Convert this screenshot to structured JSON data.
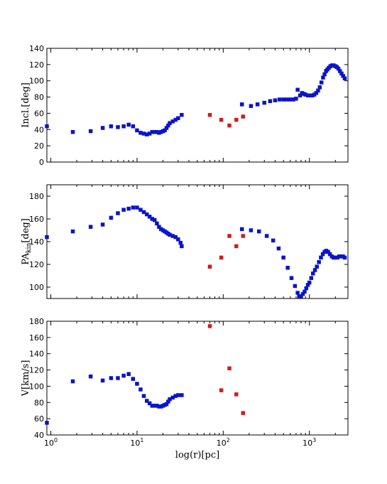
{
  "chart_data": [
    {
      "type": "scatter",
      "xscale": "log",
      "xlim": [
        0.9,
        2800
      ],
      "ylim": [
        0,
        140
      ],
      "yticks": [
        0,
        20,
        40,
        60,
        80,
        100,
        120,
        140
      ],
      "ylabel": "Incl.[deg]",
      "grid": false,
      "series": [
        {
          "color": "#0a14c8",
          "points": [
            [
              0.9,
              44
            ],
            [
              1.8,
              37
            ],
            [
              2.9,
              38
            ],
            [
              4,
              42
            ],
            [
              5,
              44
            ],
            [
              6,
              43
            ],
            [
              7,
              44
            ],
            [
              8,
              46
            ],
            [
              9,
              44
            ],
            [
              10,
              39
            ],
            [
              11,
              36
            ],
            [
              12,
              35
            ],
            [
              13,
              34
            ],
            [
              14,
              35
            ],
            [
              15,
              37
            ],
            [
              16,
              37
            ],
            [
              17,
              37
            ],
            [
              18,
              36
            ],
            [
              19,
              37
            ],
            [
              20,
              38
            ],
            [
              21,
              39
            ],
            [
              22,
              42
            ],
            [
              23,
              45
            ],
            [
              24,
              48
            ],
            [
              26,
              50
            ],
            [
              28,
              52
            ],
            [
              30,
              54
            ],
            [
              33,
              58
            ],
            [
              165,
              71
            ],
            [
              210,
              69
            ],
            [
              250,
              71
            ],
            [
              300,
              73
            ],
            [
              350,
              75
            ],
            [
              400,
              76
            ],
            [
              450,
              77
            ],
            [
              500,
              77
            ],
            [
              550,
              77
            ],
            [
              600,
              77
            ],
            [
              650,
              77
            ],
            [
              700,
              78
            ],
            [
              730,
              89
            ],
            [
              780,
              82
            ],
            [
              820,
              85
            ],
            [
              860,
              84
            ],
            [
              900,
              83
            ],
            [
              960,
              82
            ],
            [
              1020,
              82
            ],
            [
              1080,
              82
            ],
            [
              1140,
              83
            ],
            [
              1200,
              85
            ],
            [
              1260,
              88
            ],
            [
              1320,
              92
            ],
            [
              1380,
              98
            ],
            [
              1440,
              104
            ],
            [
              1500,
              108
            ],
            [
              1560,
              112
            ],
            [
              1620,
              114
            ],
            [
              1680,
              116
            ],
            [
              1750,
              118
            ],
            [
              1830,
              119
            ],
            [
              1910,
              119
            ],
            [
              2000,
              118
            ],
            [
              2080,
              117
            ],
            [
              2170,
              115
            ],
            [
              2260,
              112
            ],
            [
              2360,
              109
            ],
            [
              2460,
              106
            ],
            [
              2570,
              103
            ]
          ]
        },
        {
          "color": "#d01c1c",
          "points": [
            [
              70,
              58
            ],
            [
              95,
              52
            ],
            [
              118,
              45
            ],
            [
              142,
              52
            ],
            [
              170,
              56
            ]
          ]
        }
      ]
    },
    {
      "type": "scatter",
      "xscale": "log",
      "xlim": [
        0.9,
        2800
      ],
      "ylim": [
        90,
        190
      ],
      "yticks": [
        100,
        120,
        140,
        160,
        180
      ],
      "ylabel": "PA_kin[deg]",
      "grid": false,
      "series": [
        {
          "color": "#0a14c8",
          "points": [
            [
              0.9,
              144
            ],
            [
              1.8,
              149
            ],
            [
              2.9,
              153
            ],
            [
              4,
              155
            ],
            [
              5,
              161
            ],
            [
              6,
              165
            ],
            [
              7,
              168
            ],
            [
              8,
              169
            ],
            [
              9,
              170
            ],
            [
              10,
              170
            ],
            [
              11,
              168
            ],
            [
              12,
              166
            ],
            [
              13,
              164
            ],
            [
              14,
              162
            ],
            [
              15,
              160
            ],
            [
              16,
              159
            ],
            [
              17,
              156
            ],
            [
              18,
              153
            ],
            [
              19,
              151
            ],
            [
              20,
              150
            ],
            [
              21,
              149
            ],
            [
              22,
              148
            ],
            [
              23,
              147
            ],
            [
              24,
              146
            ],
            [
              26,
              145
            ],
            [
              28,
              144
            ],
            [
              30,
              142
            ],
            [
              32,
              139
            ],
            [
              33,
              136
            ],
            [
              165,
              151
            ],
            [
              210,
              150
            ],
            [
              260,
              149
            ],
            [
              320,
              145
            ],
            [
              380,
              141
            ],
            [
              440,
              134
            ],
            [
              500,
              126
            ],
            [
              560,
              117
            ],
            [
              620,
              108
            ],
            [
              680,
              101
            ],
            [
              730,
              95
            ],
            [
              760,
              92
            ],
            [
              800,
              92
            ],
            [
              840,
              94
            ],
            [
              880,
              96
            ],
            [
              920,
              99
            ],
            [
              960,
              102
            ],
            [
              1000,
              104
            ],
            [
              1050,
              108
            ],
            [
              1100,
              112
            ],
            [
              1160,
              115
            ],
            [
              1220,
              118
            ],
            [
              1290,
              122
            ],
            [
              1360,
              126
            ],
            [
              1430,
              129
            ],
            [
              1500,
              131
            ],
            [
              1570,
              132
            ],
            [
              1650,
              131
            ],
            [
              1730,
              129
            ],
            [
              1820,
              127
            ],
            [
              1910,
              126
            ],
            [
              2010,
              126
            ],
            [
              2110,
              126
            ],
            [
              2220,
              127
            ],
            [
              2330,
              127
            ],
            [
              2450,
              127
            ],
            [
              2570,
              126
            ]
          ]
        },
        {
          "color": "#d01c1c",
          "points": [
            [
              70,
              118
            ],
            [
              95,
              126
            ],
            [
              118,
              145
            ],
            [
              142,
              136
            ],
            [
              170,
              145
            ]
          ]
        }
      ]
    },
    {
      "type": "scatter",
      "xscale": "log",
      "xlim": [
        0.9,
        2800
      ],
      "ylim": [
        40,
        180
      ],
      "yticks": [
        40,
        60,
        80,
        100,
        120,
        140,
        160,
        180
      ],
      "ylabel": "V[km/s]",
      "xlabel": "log(r)[pc]",
      "xticklabels": [
        "10^0",
        "10^1",
        "10^2",
        "10^3"
      ],
      "grid": false,
      "series": [
        {
          "color": "#0a14c8",
          "points": [
            [
              0.9,
              55
            ],
            [
              1.8,
              106
            ],
            [
              2.9,
              112
            ],
            [
              4,
              107
            ],
            [
              5,
              110
            ],
            [
              6,
              110
            ],
            [
              7,
              113
            ],
            [
              8,
              115
            ],
            [
              9,
              109
            ],
            [
              10,
              103
            ],
            [
              11,
              96
            ],
            [
              12,
              88
            ],
            [
              13,
              82
            ],
            [
              14,
              79
            ],
            [
              15,
              76
            ],
            [
              16,
              76
            ],
            [
              17,
              76
            ],
            [
              18,
              75
            ],
            [
              19,
              75
            ],
            [
              20,
              76
            ],
            [
              21,
              77
            ],
            [
              22,
              78
            ],
            [
              23,
              81
            ],
            [
              24,
              84
            ],
            [
              26,
              86
            ],
            [
              28,
              88
            ],
            [
              30,
              89
            ],
            [
              33,
              89
            ]
          ]
        },
        {
          "color": "#d01c1c",
          "points": [
            [
              70,
              174
            ],
            [
              95,
              95
            ],
            [
              118,
              122
            ],
            [
              142,
              90
            ],
            [
              170,
              67
            ]
          ]
        }
      ]
    }
  ]
}
